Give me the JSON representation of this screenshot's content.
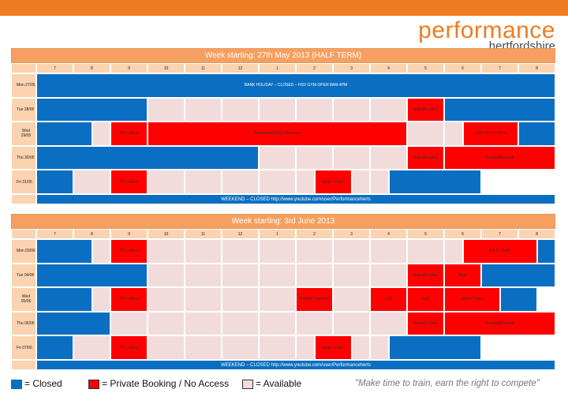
{
  "brand": {
    "name": "performance",
    "sub": "hertfordshire"
  },
  "hours": [
    "7",
    "8",
    "9",
    "10",
    "11",
    "12",
    "1",
    "2",
    "3",
    "4",
    "5",
    "6",
    "7",
    "8"
  ],
  "weeks": [
    {
      "title": "Week starting: 27th May 2013 (HALF TERM)",
      "days": [
        {
          "label": "Mon 27/05",
          "blocks": [
            {
              "s": "c",
              "n": 14,
              "t": "BANK HOLIDAY – CLOSED – HSV GYM OPEN 8AM-4PM"
            }
          ]
        },
        {
          "label": "Tue 28/05",
          "blocks": [
            {
              "s": "c",
              "n": 3
            },
            {
              "s": "a",
              "n": 7
            },
            {
              "s": "b",
              "n": 1,
              "t": "Netball/Ladies"
            },
            {
              "s": "c",
              "n": 3
            }
          ]
        },
        {
          "label": "Wed 29/05",
          "blocks": [
            {
              "s": "c",
              "n": 1.5
            },
            {
              "s": "a",
              "n": 0.5
            },
            {
              "s": "b",
              "n": 1,
              "t": "PT Ladies"
            },
            {
              "s": "b",
              "n": 7,
              "t": "Residential Boys Practices"
            },
            {
              "s": "a",
              "n": 1.5
            },
            {
              "s": "b",
              "n": 1.5,
              "t": "HOCKEY / OAKS"
            },
            {
              "s": "c",
              "n": 1
            }
          ]
        },
        {
          "label": "Thu 30/05",
          "blocks": [
            {
              "s": "c",
              "n": 6
            },
            {
              "s": "a",
              "n": 4
            },
            {
              "s": "b",
              "n": 1,
              "t": "Netball/Ladies"
            },
            {
              "s": "b",
              "n": 3,
              "t": "Football/Netball"
            }
          ]
        },
        {
          "label": "Fri 31/05",
          "blocks": [
            {
              "s": "c",
              "n": 1
            },
            {
              "s": "a",
              "n": 1
            },
            {
              "s": "b",
              "n": 1,
              "t": "PT Ladies"
            },
            {
              "s": "a",
              "n": 4.5
            },
            {
              "s": "b",
              "n": 1,
              "t": "Adult / Oaks"
            },
            {
              "s": "a",
              "n": 1
            },
            {
              "s": "c",
              "n": 2.5
            }
          ]
        }
      ],
      "footer": "WEEKEND – CLOSED http://www.youtube.com/user/Performanceherts"
    },
    {
      "title": "Week starting: 3rd June 2013",
      "days": [
        {
          "label": "Mon 03/06",
          "blocks": [
            {
              "s": "c",
              "n": 1.5
            },
            {
              "s": "a",
              "n": 0.5
            },
            {
              "s": "b",
              "n": 1,
              "t": "PT Ladies"
            },
            {
              "s": "a",
              "n": 8.5
            },
            {
              "s": "b",
              "n": 2,
              "t": "Adult / Oaks"
            },
            {
              "s": "c",
              "n": 0.5
            }
          ]
        },
        {
          "label": "Tue 04/06",
          "blocks": [
            {
              "s": "c",
              "n": 3
            },
            {
              "s": "a",
              "n": 7
            },
            {
              "s": "b",
              "n": 1,
              "t": "Netball/Ladies"
            },
            {
              "s": "b",
              "n": 1,
              "t": "Boot"
            },
            {
              "s": "c",
              "n": 2
            }
          ]
        },
        {
          "label": "Wed 05/06",
          "blocks": [
            {
              "s": "c",
              "n": 1.5
            },
            {
              "s": "a",
              "n": 0.5
            },
            {
              "s": "b",
              "n": 1,
              "t": "PT Ladies"
            },
            {
              "s": "a",
              "n": 4
            },
            {
              "s": "b",
              "n": 1,
              "t": "Private Sessions"
            },
            {
              "s": "a",
              "n": 1
            },
            {
              "s": "b",
              "n": 1,
              "t": "U13"
            },
            {
              "s": "b",
              "n": 1,
              "t": "Ball"
            },
            {
              "s": "b",
              "n": 1.5,
              "t": "Adult / Oaks"
            },
            {
              "s": "c",
              "n": 1
            }
          ]
        },
        {
          "label": "Thu 06/06",
          "blocks": [
            {
              "s": "c",
              "n": 2
            },
            {
              "s": "a",
              "n": 8
            },
            {
              "s": "b",
              "n": 1,
              "t": "Netball Team"
            },
            {
              "s": "b",
              "n": 3,
              "t": "Football/Netball"
            }
          ]
        },
        {
          "label": "Fri 07/06",
          "blocks": [
            {
              "s": "c",
              "n": 1
            },
            {
              "s": "a",
              "n": 1
            },
            {
              "s": "b",
              "n": 1,
              "t": "PT Ladies"
            },
            {
              "s": "a",
              "n": 4.5
            },
            {
              "s": "b",
              "n": 1,
              "t": "Adult / Oaks"
            },
            {
              "s": "a",
              "n": 1
            },
            {
              "s": "c",
              "n": 2.5
            }
          ]
        }
      ],
      "footer": "WEEKEND – CLOSED http://www.youtube.com/user/Performanceherts"
    }
  ],
  "legend": {
    "closed": "= Closed",
    "booked": "= Private Booking / No Access",
    "available": "= Available"
  },
  "tagline": "\"Make time to train, earn the right to compete\"",
  "colors": {
    "closed": "#0a6fc2",
    "booked": "#ff0000",
    "available": "#f2dcdb",
    "header": "#fbd3b0",
    "accent": "#f07c21"
  }
}
